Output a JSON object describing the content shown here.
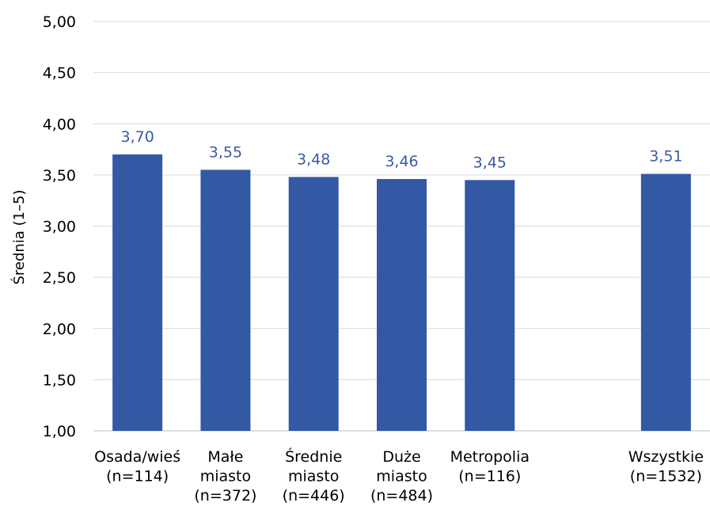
{
  "chart_data": {
    "type": "bar",
    "title": "",
    "ylabel": "Średnia (1–5)",
    "xlabel": "",
    "ylim": [
      1.0,
      5.0
    ],
    "yticks": [
      "1,00",
      "1,50",
      "2,00",
      "2,50",
      "3,00",
      "3,50",
      "4,00",
      "4,50",
      "5,00"
    ],
    "grid": true,
    "legend": "none",
    "categories": [
      [
        "Osada/wieś",
        "(n=114)"
      ],
      [
        "Małe",
        "miasto",
        "(n=372)"
      ],
      [
        "Średnie",
        "miasto",
        "(n=446)"
      ],
      [
        "Duże",
        "miasto",
        "(n=484)"
      ],
      [
        "Metropolia",
        "(n=116)"
      ],
      [],
      [
        "Wszystkie",
        "(n=1532)"
      ]
    ],
    "values": [
      3.7,
      3.55,
      3.48,
      3.46,
      3.45,
      null,
      3.51
    ],
    "data_labels": [
      "3,70",
      "3,55",
      "3,48",
      "3,46",
      "3,45",
      "",
      "3,51"
    ],
    "colors": {
      "bar": "#3358A4",
      "data_label": "#3A5BA0",
      "grid": "#D9D9D9",
      "axis": "#BFBFBF"
    }
  }
}
